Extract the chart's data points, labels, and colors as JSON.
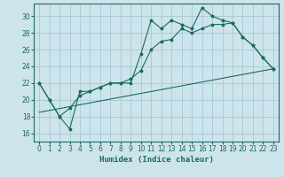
{
  "xlabel": "Humidex (Indice chaleur)",
  "xlim": [
    -0.5,
    23.5
  ],
  "ylim": [
    15.0,
    31.5
  ],
  "yticks": [
    16,
    18,
    20,
    22,
    24,
    26,
    28,
    30
  ],
  "xticks": [
    0,
    1,
    2,
    3,
    4,
    5,
    6,
    7,
    8,
    9,
    10,
    11,
    12,
    13,
    14,
    15,
    16,
    17,
    18,
    19,
    20,
    21,
    22,
    23
  ],
  "bg_color": "#cde4ec",
  "grid_color": "#aacdd8",
  "line_color": "#1a6b5a",
  "line1_x": [
    0,
    1,
    2,
    3,
    4,
    5,
    6,
    7,
    8,
    9,
    10,
    11,
    12,
    13,
    14,
    15,
    16,
    17,
    18,
    19,
    20,
    21,
    22,
    23
  ],
  "line1_y": [
    22,
    20,
    18,
    16.5,
    21,
    21,
    21.5,
    22,
    22,
    22,
    25.5,
    29.5,
    28.5,
    29.5,
    29,
    28.5,
    31,
    30,
    29.5,
    29.2,
    27.5,
    26.5,
    25,
    23.7
  ],
  "line2_x": [
    0,
    1,
    2,
    3,
    4,
    5,
    6,
    7,
    8,
    9,
    10,
    11,
    12,
    13,
    14,
    15,
    16,
    17,
    18,
    19,
    20,
    21,
    22,
    23
  ],
  "line2_y": [
    22,
    20,
    18,
    19,
    20.5,
    21,
    21.5,
    22,
    22,
    22.5,
    23.5,
    26,
    27,
    27.2,
    28.5,
    28,
    28.5,
    29,
    29,
    29.2,
    27.5,
    26.5,
    25,
    23.7
  ],
  "line3_x": [
    0,
    23
  ],
  "line3_y": [
    18.5,
    23.7
  ]
}
